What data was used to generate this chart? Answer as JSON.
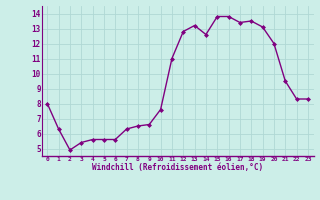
{
  "hours": [
    0,
    1,
    2,
    3,
    4,
    5,
    6,
    7,
    8,
    9,
    10,
    11,
    12,
    13,
    14,
    15,
    16,
    17,
    18,
    19,
    20,
    21,
    22,
    23
  ],
  "values": [
    8.0,
    6.3,
    4.9,
    5.4,
    5.6,
    5.6,
    5.6,
    6.3,
    6.5,
    6.6,
    7.6,
    11.0,
    12.8,
    13.2,
    12.6,
    13.8,
    13.8,
    13.4,
    13.5,
    13.1,
    12.0,
    9.5,
    8.3,
    8.3
  ],
  "line_color": "#800080",
  "marker": "D",
  "marker_size": 2,
  "line_width": 1.0,
  "bg_color": "#cceee8",
  "grid_color": "#b0d8d4",
  "xlabel": "Windchill (Refroidissement éolien,°C)",
  "xlabel_color": "#800080",
  "tick_color": "#800080",
  "ylim": [
    4.5,
    14.5
  ],
  "xlim": [
    -0.5,
    23.5
  ],
  "yticks": [
    5,
    6,
    7,
    8,
    9,
    10,
    11,
    12,
    13,
    14
  ],
  "xticks": [
    0,
    1,
    2,
    3,
    4,
    5,
    6,
    7,
    8,
    9,
    10,
    11,
    12,
    13,
    14,
    15,
    16,
    17,
    18,
    19,
    20,
    21,
    22,
    23
  ],
  "spine_color": "#800080"
}
